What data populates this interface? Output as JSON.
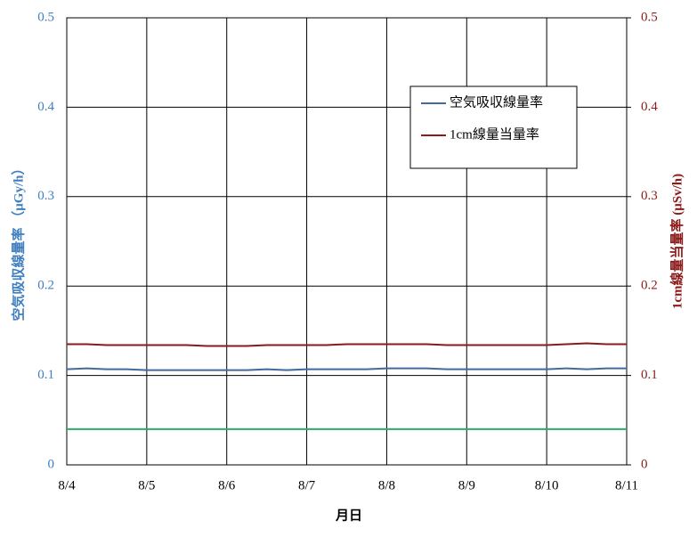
{
  "chart_data": {
    "type": "line",
    "x": [
      4,
      4.25,
      4.5,
      4.75,
      5,
      5.25,
      5.5,
      5.75,
      6,
      6.25,
      6.5,
      6.75,
      7,
      7.25,
      7.5,
      7.75,
      8,
      8.25,
      8.5,
      8.75,
      9,
      9.25,
      9.5,
      9.75,
      10,
      10.25,
      10.5,
      10.75,
      11
    ],
    "xlim": [
      4,
      11
    ],
    "xticks": [
      {
        "value": 4,
        "label": "8/4"
      },
      {
        "value": 5,
        "label": "8/5"
      },
      {
        "value": 6,
        "label": "8/6"
      },
      {
        "value": 7,
        "label": "8/7"
      },
      {
        "value": 8,
        "label": "8/8"
      },
      {
        "value": 9,
        "label": "8/9"
      },
      {
        "value": 10,
        "label": "8/10"
      },
      {
        "value": 11,
        "label": "8/11"
      }
    ],
    "xlabel": "月日",
    "ylabel": "空気吸収線量率 （μGy/h）",
    "y2label": "1cm線量当量率 (μSv/h)",
    "ylim": [
      0,
      0.5
    ],
    "yticks": [
      0,
      0.1,
      0.2,
      0.3,
      0.4,
      0.5
    ],
    "y2lim": [
      0,
      0.5
    ],
    "y2ticks": [
      0,
      0.1,
      0.2,
      0.3,
      0.4,
      0.5
    ],
    "grid": true,
    "legend": "upper right",
    "series": [
      {
        "name": "空気吸収線量率",
        "color": "#3f6b9e",
        "values": [
          0.107,
          0.108,
          0.107,
          0.107,
          0.106,
          0.106,
          0.106,
          0.106,
          0.106,
          0.106,
          0.107,
          0.106,
          0.107,
          0.107,
          0.107,
          0.107,
          0.108,
          0.108,
          0.108,
          0.107,
          0.107,
          0.107,
          0.107,
          0.107,
          0.107,
          0.108,
          0.107,
          0.108,
          0.108
        ]
      },
      {
        "name": "1cm線量当量率",
        "color": "#8b1a1a",
        "axis": "y2",
        "values": [
          0.135,
          0.135,
          0.134,
          0.134,
          0.134,
          0.134,
          0.134,
          0.133,
          0.133,
          0.133,
          0.134,
          0.134,
          0.134,
          0.134,
          0.135,
          0.135,
          0.135,
          0.135,
          0.135,
          0.134,
          0.134,
          0.134,
          0.134,
          0.134,
          0.134,
          0.135,
          0.136,
          0.135,
          0.135
        ]
      },
      {
        "color": "#2eaa6a",
        "x": [
          4,
          11
        ],
        "values": [
          0.04,
          0.04
        ]
      }
    ]
  }
}
